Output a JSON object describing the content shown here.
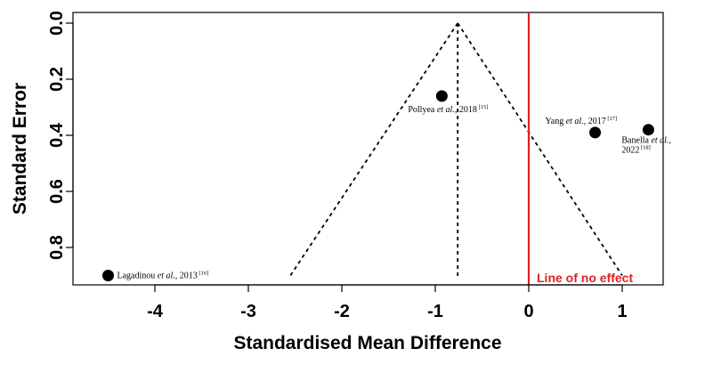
{
  "chart_data": {
    "type": "scatter",
    "subtype": "funnel-plot",
    "title": "",
    "xlabel": "Standardised Mean Difference",
    "ylabel": "Standard Error",
    "xlim": [
      -4.75,
      1.3
    ],
    "ylim": [
      0.0,
      0.92
    ],
    "y_reversed": true,
    "x_ticks": [
      "-4",
      "-3",
      "-2",
      "-1",
      "0",
      "1"
    ],
    "y_ticks": [
      "0.0",
      "0.2",
      "0.4",
      "0.6",
      "0.8"
    ],
    "grid": false,
    "points": [
      {
        "author": "Pollyea",
        "etal": " et al.",
        "year": ", 2018",
        "ref": "[15]",
        "x": -0.93,
        "y": 0.26
      },
      {
        "author": "Yang",
        "etal": " et al.",
        "year": ", 2017",
        "ref": "[17]",
        "x": 0.71,
        "y": 0.39
      },
      {
        "author": "Banella",
        "etal": " et al.",
        "year": ",",
        "line2": "2022",
        "ref": "[18]",
        "x": 1.28,
        "y": 0.38
      },
      {
        "author": "Lagadinou",
        "etal": " et al.",
        "year": ", 2013",
        "ref": "[16]",
        "x": -4.5,
        "y": 0.9
      }
    ],
    "funnel": {
      "center": -0.76,
      "apex_se": 0.0,
      "base_se": 0.9,
      "left_x": -2.55,
      "right_x": 1.0
    },
    "reference_line": {
      "x": 0,
      "label": "Line of no effect",
      "color": "#e02020"
    }
  }
}
